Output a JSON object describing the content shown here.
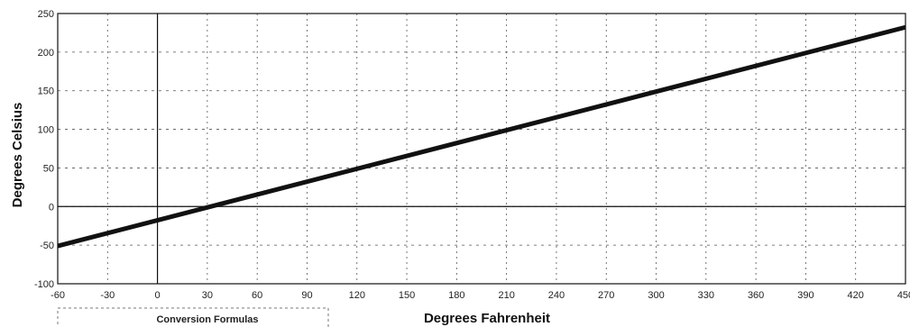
{
  "chart_data": {
    "type": "line",
    "title": "",
    "xlabel": "Degrees Fahrenheit",
    "ylabel": "Degrees Celsius",
    "xlim": [
      -60,
      450
    ],
    "ylim": [
      -100,
      250
    ],
    "x_ticks": [
      -60,
      -30,
      0,
      30,
      60,
      90,
      120,
      150,
      180,
      210,
      240,
      270,
      300,
      330,
      360,
      390,
      420,
      450
    ],
    "y_ticks": [
      -100,
      -50,
      0,
      50,
      100,
      150,
      200,
      250
    ],
    "x_tick_labels": [
      "-60",
      "-30",
      "0",
      "30",
      "60",
      "90",
      "120",
      "150",
      "180",
      "210",
      "240",
      "270",
      "300",
      "330",
      "360",
      "390",
      "420",
      "450"
    ],
    "y_tick_labels": [
      "-100",
      "-50",
      "0",
      "50",
      "100",
      "150",
      "200",
      "250"
    ],
    "grid": true,
    "series": [
      {
        "x": [
          -60,
          450
        ],
        "y": [
          -51.1,
          232.2
        ],
        "color": "#111111"
      }
    ],
    "legend_box_title": "Conversion Formulas"
  }
}
